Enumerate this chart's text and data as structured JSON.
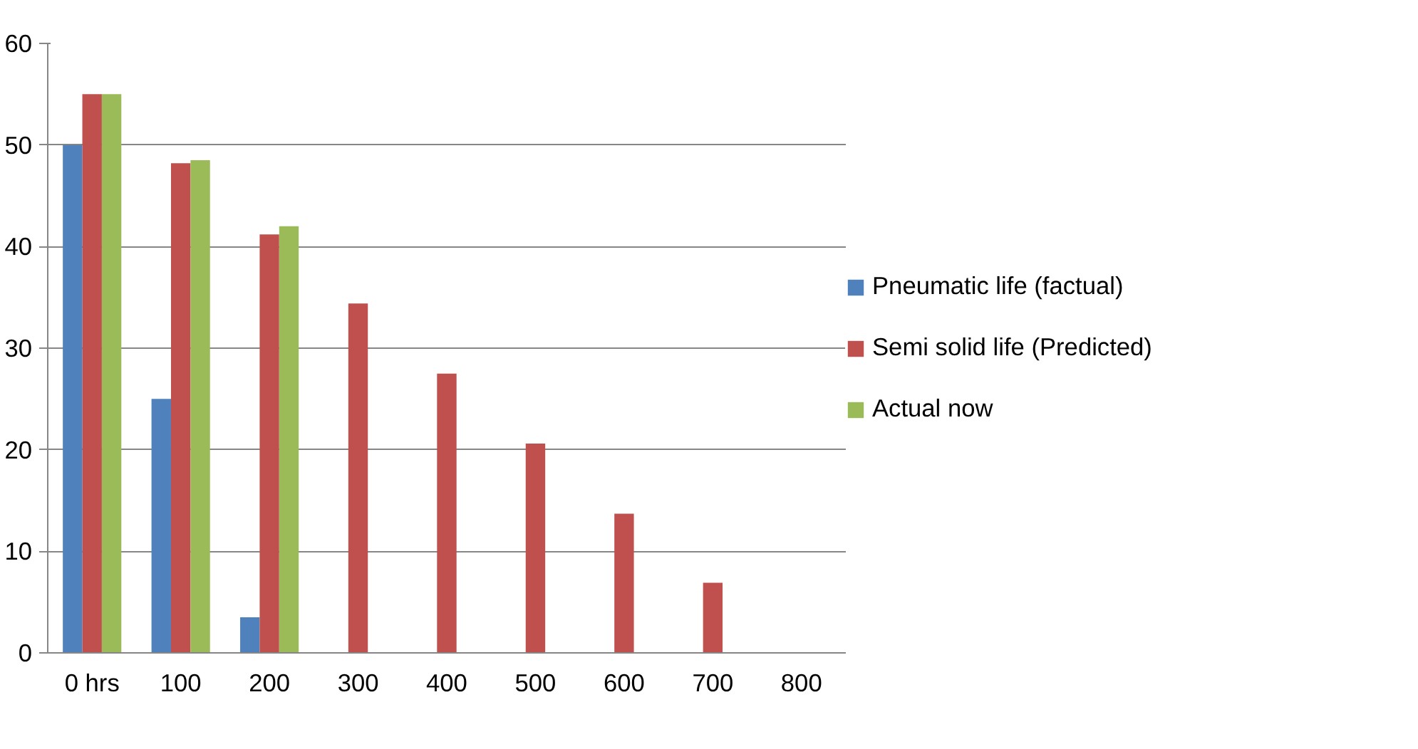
{
  "chart_data": {
    "type": "bar",
    "categories": [
      "0 hrs",
      "100",
      "200",
      "300",
      "400",
      "500",
      "600",
      "700",
      "800"
    ],
    "series": [
      {
        "name": "Pneumatic life (factual)",
        "color": "#4f81bd",
        "values": [
          50,
          25,
          3.5,
          null,
          null,
          null,
          null,
          null,
          null
        ]
      },
      {
        "name": "Semi solid life (Predicted)",
        "color": "#c0504d",
        "values": [
          55,
          48.2,
          41.2,
          34.4,
          27.5,
          20.6,
          13.7,
          6.9,
          0
        ]
      },
      {
        "name": "Actual now",
        "color": "#9bbb59",
        "values": [
          55,
          48.5,
          42,
          null,
          null,
          null,
          null,
          null,
          null
        ]
      }
    ],
    "ylim": [
      0,
      60
    ],
    "yticks": [
      0,
      10,
      20,
      30,
      40,
      50,
      60
    ],
    "grid": "y",
    "legend": "right"
  }
}
